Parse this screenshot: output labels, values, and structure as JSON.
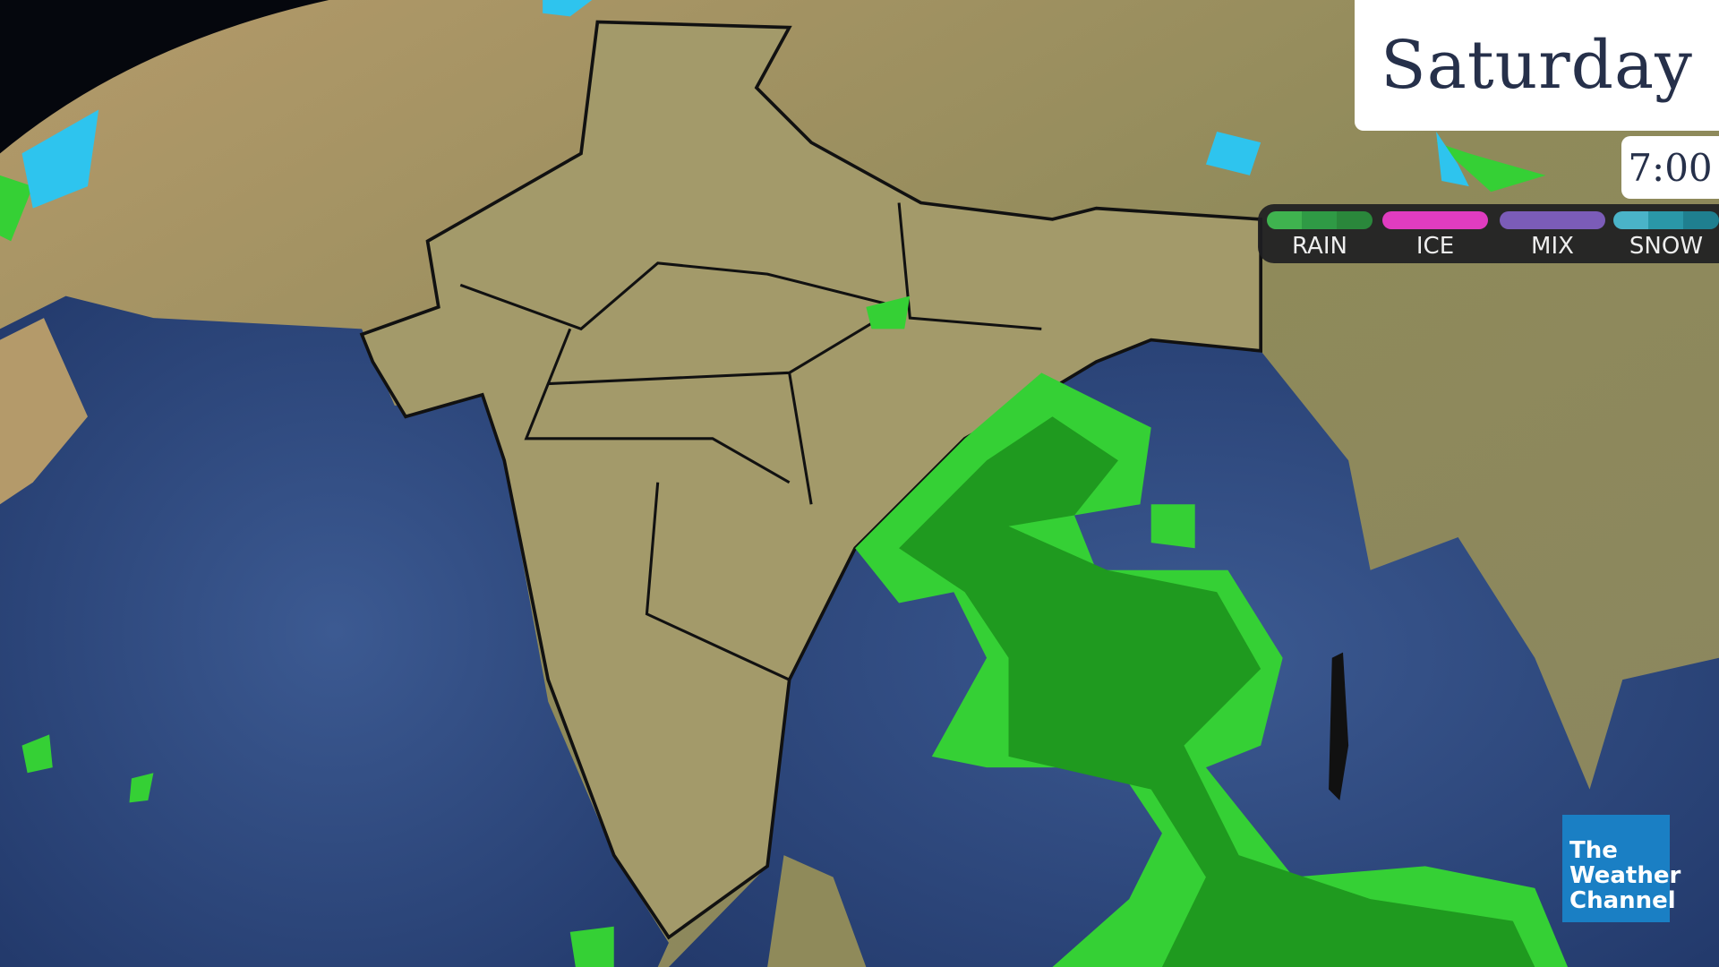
{
  "header": {
    "day": "Saturday",
    "time": "7:00"
  },
  "legend": {
    "items": [
      {
        "label": "RAIN",
        "colors": [
          "#3fb34f",
          "#2f9a45",
          "#2a873b"
        ]
      },
      {
        "label": "ICE",
        "colors": [
          "#e03cc0"
        ]
      },
      {
        "label": "MIX",
        "colors": [
          "#7b5cb8"
        ]
      },
      {
        "label": "SNOW",
        "colors": [
          "#4ab3c8",
          "#2a97a8",
          "#1f7f8f"
        ]
      }
    ]
  },
  "logo": {
    "line1": "The",
    "line2": "Weather",
    "line3": "Channel",
    "color": "#1a7fc4"
  },
  "map": {
    "region": "India",
    "layer": "precipitation radar",
    "rain_color": "#1f9a1f",
    "rain_light_color": "#35d035",
    "snow_color": "#2ec4ee"
  }
}
